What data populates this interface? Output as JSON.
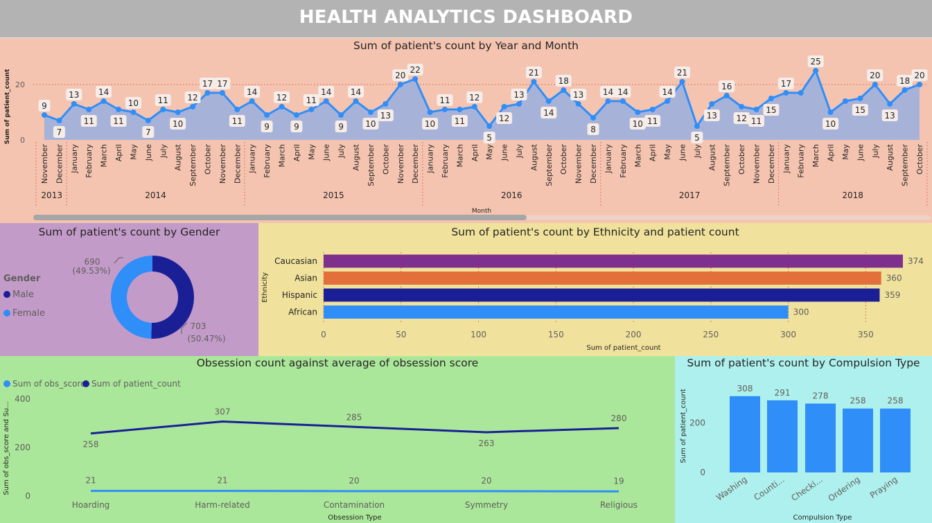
{
  "header": {
    "title": "HEALTH ANALYTICS DASHBOARD"
  },
  "colors": {
    "header_bg": "#b3b3b3",
    "timeline_bg": "#f4c4b0",
    "gender_bg": "#c39bc9",
    "ethnicity_bg": "#f0e29c",
    "obsession_bg": "#abe79a",
    "compulsion_bg": "#aef0ed",
    "male": "#1b1f96",
    "female": "#2f8ef8",
    "caucasian": "#7f2f8c",
    "asian": "#e3703a",
    "hispanic": "#1b1f96",
    "african": "#2f8ef8",
    "line_blue": "#2f8ef8"
  },
  "timeline": {
    "title": "Sum of patient's count by Year and Month",
    "ylabel": "Sum of patient_count",
    "xlabel": "Month",
    "ytick_labels": [
      "0",
      "20"
    ],
    "chart_data": {
      "type": "area",
      "ylim": [
        0,
        28
      ],
      "months": [
        "November",
        "December",
        "January",
        "February",
        "March",
        "April",
        "May",
        "June",
        "July",
        "August",
        "September",
        "October",
        "November",
        "December",
        "January",
        "February",
        "March",
        "April",
        "May",
        "June",
        "July",
        "August",
        "September",
        "October",
        "November",
        "December",
        "January",
        "February",
        "March",
        "April",
        "May",
        "June",
        "July",
        "August",
        "September",
        "October",
        "November",
        "December",
        "January",
        "February",
        "March",
        "April",
        "May",
        "June",
        "July",
        "August",
        "September",
        "October",
        "November",
        "December",
        "January",
        "February",
        "March",
        "April",
        "May",
        "June",
        "July",
        "August",
        "September",
        "October"
      ],
      "values": [
        9,
        7,
        13,
        11,
        14,
        11,
        10,
        7,
        11,
        10,
        12,
        17,
        17,
        11,
        14,
        9,
        12,
        9,
        11,
        14,
        9,
        14,
        10,
        13,
        20,
        22,
        10,
        11,
        11,
        12,
        5,
        12,
        13,
        21,
        14,
        18,
        13,
        8,
        14,
        14,
        10,
        11,
        14,
        21,
        5,
        13,
        16,
        12,
        11,
        15,
        17,
        17,
        25,
        10,
        14,
        15,
        20,
        13,
        18,
        20
      ],
      "value_labels": [
        "9",
        "7",
        "13",
        "11",
        "14",
        "11",
        "10",
        "7",
        "11",
        "10",
        "12",
        "17",
        "17",
        "11",
        "14",
        "9",
        "12",
        "9",
        "11",
        "14",
        "9",
        "14",
        "10",
        "13",
        "20",
        "22",
        "10",
        "11",
        "11",
        "12",
        "5",
        "12",
        "13",
        "21",
        "14",
        "18",
        "13",
        "8",
        "14",
        "14",
        "10",
        "11",
        "14",
        "21",
        "5",
        "13",
        "16",
        "12",
        "11",
        "15",
        "17",
        "",
        "25",
        "10",
        "",
        "15",
        "20",
        "13",
        "18",
        "20"
      ],
      "years": [
        {
          "label": "2013",
          "start": 0,
          "end": 1
        },
        {
          "label": "2014",
          "start": 2,
          "end": 13
        },
        {
          "label": "2015",
          "start": 14,
          "end": 25
        },
        {
          "label": "2016",
          "start": 26,
          "end": 37
        },
        {
          "label": "2017",
          "start": 38,
          "end": 49
        },
        {
          "label": "2018",
          "start": 50,
          "end": 59
        }
      ],
      "grid": true
    }
  },
  "gender": {
    "title": "Sum of patient's count by Gender",
    "legend_title": "Gender",
    "chart_data": {
      "type": "pie",
      "donut": true,
      "slices": [
        {
          "name": "Male",
          "value": 703,
          "label": "703",
          "pct": "(50.47%)"
        },
        {
          "name": "Female",
          "value": 690,
          "label": "690",
          "pct": "(49.53%)"
        }
      ]
    }
  },
  "ethnicity": {
    "title": "Sum of patient's count by Ethnicity and patient count",
    "ylabel": "Ethnicity",
    "xlabel": "Sum of patient_count",
    "chart_data": {
      "type": "bar",
      "orientation": "horizontal",
      "categories": [
        "Caucasian",
        "Asian",
        "Hispanic",
        "African"
      ],
      "values": [
        374,
        360,
        359,
        300
      ],
      "value_labels": [
        "374",
        "360",
        "359",
        "300"
      ],
      "xlim": [
        0,
        374
      ],
      "xticks": [
        0,
        50,
        100,
        150,
        200,
        250,
        300,
        350
      ],
      "xtick_labels": [
        "0",
        "50",
        "100",
        "150",
        "200",
        "250",
        "300",
        "350"
      ]
    }
  },
  "obsession": {
    "title": "Obsession count against average of obsession score",
    "legend": [
      "Sum of obs_score",
      "Sum of patient_count"
    ],
    "ylabel": "Sum of obs_score and Su...",
    "xlabel": "Obsession Type",
    "chart_data": {
      "type": "line",
      "categories": [
        "Hoarding",
        "Harm-related",
        "Contamination",
        "Symmetry",
        "Religious"
      ],
      "ylim": [
        0,
        420
      ],
      "yticks": [
        0,
        200,
        400
      ],
      "ytick_labels": [
        "0",
        "200",
        "400"
      ],
      "series": [
        {
          "name": "Sum of obs_score",
          "values": [
            21,
            21,
            20,
            20,
            19
          ],
          "labels": [
            "21",
            "21",
            "20",
            "20",
            "19"
          ]
        },
        {
          "name": "Sum of patient_count",
          "values": [
            258,
            307,
            285,
            263,
            280
          ],
          "labels": [
            "258",
            "307",
            "285",
            "263",
            "280"
          ]
        }
      ]
    }
  },
  "compulsion": {
    "title": "Sum of patient's count by Compulsion Type",
    "ylabel": "Sum of patient_count",
    "xlabel": "Compulsion Type",
    "chart_data": {
      "type": "bar",
      "categories": [
        "Washing",
        "Counti...",
        "Checki...",
        "Ordering",
        "Praying"
      ],
      "values": [
        308,
        291,
        278,
        258,
        258
      ],
      "value_labels": [
        "308",
        "291",
        "278",
        "258",
        "258"
      ],
      "ylim": [
        0,
        330
      ],
      "yticks": [
        0,
        200
      ],
      "ytick_labels": [
        "0",
        "200"
      ]
    }
  }
}
